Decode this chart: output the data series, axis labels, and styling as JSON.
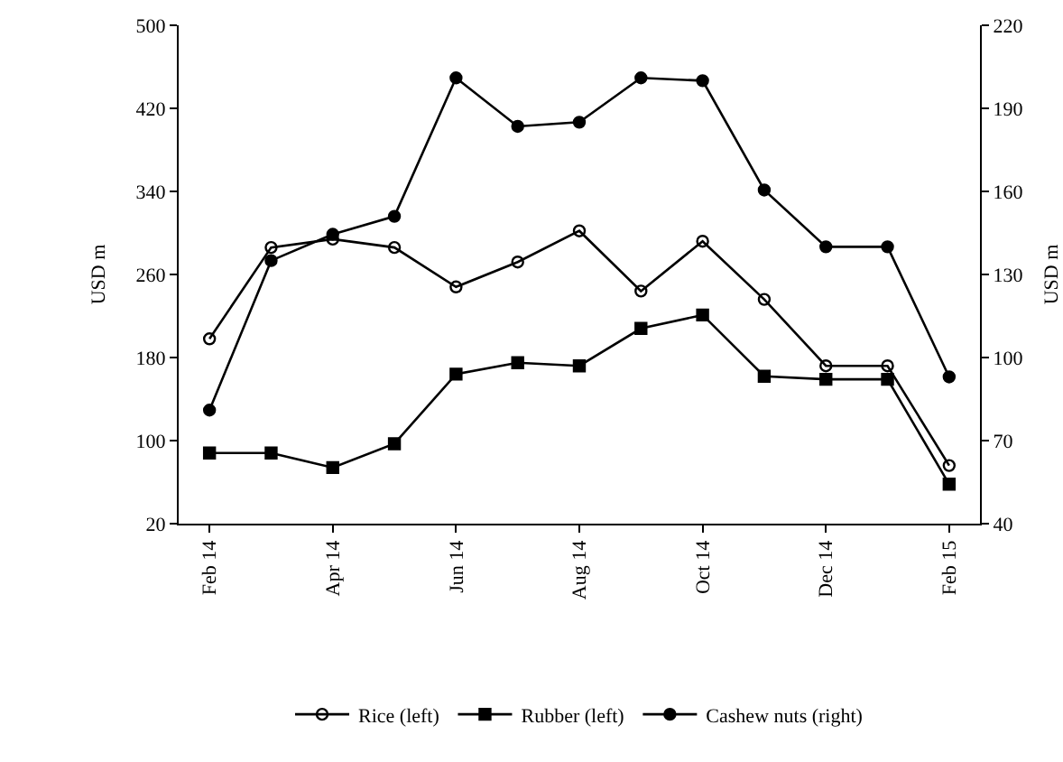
{
  "chart_data": {
    "type": "line",
    "ylabel": "USD m",
    "y2label": "USD m",
    "categories": [
      "Feb 14",
      null,
      "Apr 14",
      null,
      "Jun 14",
      null,
      "Aug 14",
      null,
      "Oct 14",
      null,
      "Dec 14",
      null,
      "Feb 15"
    ],
    "series": [
      {
        "name": "Rice (left)",
        "color": "#000000",
        "marker": "circle-open",
        "values": [
          198,
          286,
          294,
          286,
          248,
          272,
          302,
          244,
          292,
          236,
          172,
          172,
          76
        ]
      },
      {
        "name": "Rubber (left)",
        "color": "#000000",
        "marker": "square",
        "values": [
          88,
          88,
          74,
          97,
          164,
          175,
          172,
          208,
          221,
          162,
          159,
          159,
          58
        ]
      },
      {
        "name": "Cashew nuts (right)",
        "color": "#000000",
        "marker": "circle",
        "axis": "y2",
        "values": [
          81,
          135,
          144.5,
          151,
          201,
          183.5,
          185,
          201,
          200,
          160.5,
          140,
          140,
          93
        ]
      }
    ],
    "ylim": [
      20,
      500
    ],
    "yticks": [
      20,
      100,
      180,
      260,
      340,
      420,
      500
    ],
    "y2lim": [
      40,
      220
    ],
    "y2ticks": [
      40,
      70,
      100,
      130,
      160,
      190,
      220
    ],
    "grid": false,
    "legend": "bottom",
    "line_style": "solid"
  }
}
